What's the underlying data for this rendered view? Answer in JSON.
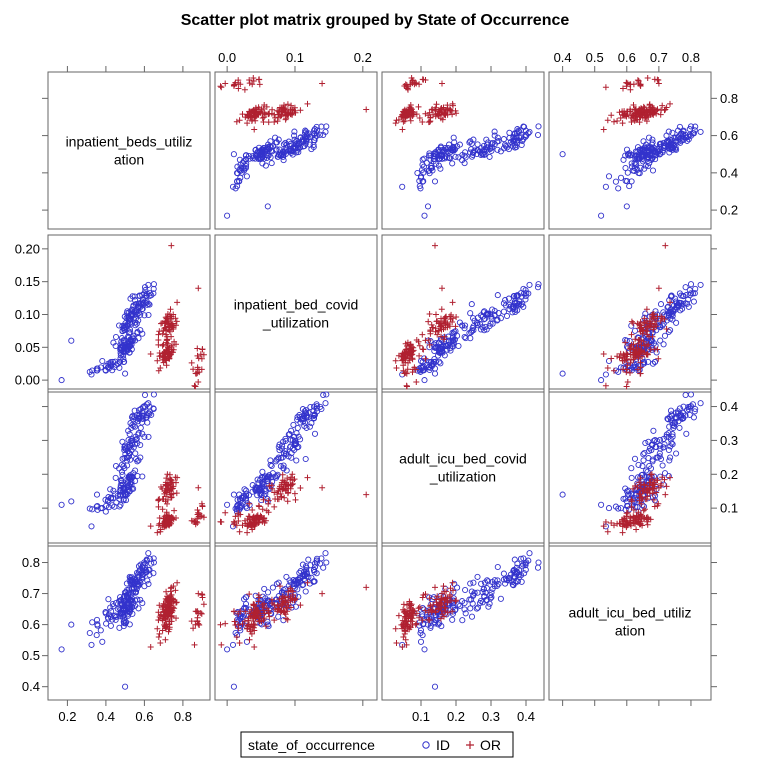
{
  "chart_data": {
    "type": "scatter",
    "title": "Scatter plot matrix grouped by State of Occurrence",
    "variables": [
      {
        "key": "inpatient_beds_utilization",
        "label_lines": [
          "inpatient_beds_utiliz",
          "ation"
        ],
        "range": [
          0.12,
          0.92
        ],
        "ticks": [
          "0.2",
          "0.4",
          "0.6",
          "0.8"
        ]
      },
      {
        "key": "inpatient_bed_covid_utilization",
        "label_lines": [
          "inpatient_bed_covid",
          "_utilization"
        ],
        "range": [
          -0.012,
          0.215
        ],
        "ticks": [
          "0.00",
          "0.05",
          "0.10",
          "0.15",
          "0.20"
        ]
      },
      {
        "key": "adult_icu_bed_covid_utilization",
        "label_lines": [
          "adult_icu_bed_covid",
          "_utilization"
        ],
        "range": [
          0.0,
          0.44
        ],
        "ticks": [
          "0.1",
          "0.2",
          "0.3",
          "0.4"
        ]
      },
      {
        "key": "adult_icu_bed_utilization",
        "label_lines": [
          "adult_icu_bed_utiliz",
          "ation"
        ],
        "range": [
          0.37,
          0.85
        ],
        "ticks": [
          "0.4",
          "0.5",
          "0.6",
          "0.7",
          "0.8"
        ]
      }
    ],
    "top_axis_ticks": {
      "col1": [
        "0.0",
        "0.1",
        "0.2"
      ],
      "col3": [
        "0.4",
        "0.5",
        "0.6",
        "0.7",
        "0.8"
      ]
    },
    "right_axis_ticks": {
      "row0": [
        "0.8",
        "0.6",
        "0.4",
        "0.2"
      ],
      "row2": [
        "0.4",
        "0.3",
        "0.2",
        "0.1"
      ]
    },
    "left_axis_ticks": {
      "row1": [
        "0.20",
        "0.15",
        "0.10",
        "0.05",
        "0.00"
      ],
      "row3": [
        "0.8",
        "0.7",
        "0.6",
        "0.5",
        "0.4"
      ]
    },
    "bottom_axis_ticks": {
      "col0": [
        "0.2",
        "0.4",
        "0.6",
        "0.8"
      ],
      "col2": [
        "0.1",
        "0.2",
        "0.3",
        "0.4"
      ]
    },
    "series": [
      {
        "name": "ID",
        "marker": "circle",
        "color": "#3333cc",
        "clusters": [
          {
            "n": 45,
            "center": [
              0.58,
              0.12,
              0.37,
              0.76
            ],
            "spread": [
              0.035,
              0.012,
              0.03,
              0.035
            ]
          },
          {
            "n": 55,
            "center": [
              0.53,
              0.09,
              0.28,
              0.7
            ],
            "spread": [
              0.04,
              0.015,
              0.04,
              0.04
            ]
          },
          {
            "n": 60,
            "center": [
              0.5,
              0.05,
              0.16,
              0.65
            ],
            "spread": [
              0.035,
              0.012,
              0.03,
              0.04
            ]
          },
          {
            "n": 30,
            "center": [
              0.42,
              0.02,
              0.12,
              0.62
            ],
            "spread": [
              0.06,
              0.006,
              0.025,
              0.04
            ]
          }
        ],
        "outliers": [
          [
            0.17,
            0.0,
            0.11,
            0.52
          ],
          [
            0.5,
            0.01,
            0.14,
            0.4
          ],
          [
            0.22,
            0.06,
            0.12,
            0.6
          ],
          [
            0.62,
            0.145,
            0.41,
            0.83
          ]
        ]
      },
      {
        "name": "OR",
        "marker": "plus",
        "color": "#b02030",
        "clusters": [
          {
            "n": 60,
            "center": [
              0.72,
              0.08,
              0.15,
              0.66
            ],
            "spread": [
              0.025,
              0.015,
              0.03,
              0.035
            ]
          },
          {
            "n": 60,
            "center": [
              0.72,
              0.04,
              0.06,
              0.62
            ],
            "spread": [
              0.025,
              0.012,
              0.015,
              0.04
            ]
          },
          {
            "n": 20,
            "center": [
              0.88,
              0.02,
              0.07,
              0.63
            ],
            "spread": [
              0.02,
              0.02,
              0.02,
              0.04
            ]
          }
        ],
        "outliers": [
          [
            0.74,
            0.205,
            0.14,
            0.72
          ],
          [
            0.88,
            0.14,
            0.16,
            0.7
          ]
        ]
      }
    ],
    "legend": {
      "title": "state_of_occurrence",
      "position": "bottom",
      "entries": [
        "ID",
        "OR"
      ]
    }
  }
}
